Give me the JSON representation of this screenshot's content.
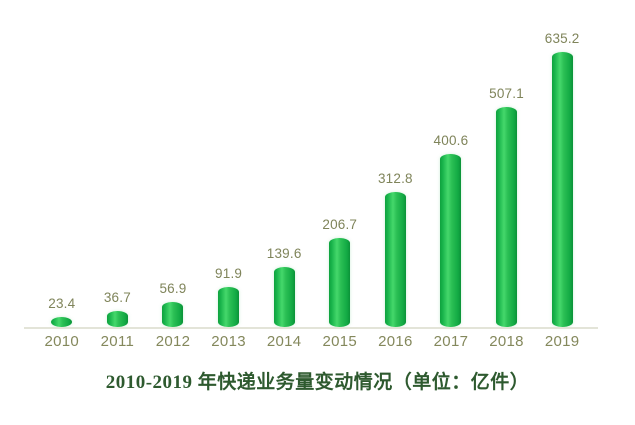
{
  "chart_data": {
    "type": "bar",
    "categories": [
      "2010",
      "2011",
      "2012",
      "2013",
      "2014",
      "2015",
      "2016",
      "2017",
      "2018",
      "2019"
    ],
    "values": [
      23.4,
      36.7,
      56.9,
      91.9,
      139.6,
      206.7,
      312.8,
      400.6,
      507.1,
      635.2
    ],
    "data_labels": [
      "23.4",
      "36.7",
      "56.9",
      "91.9",
      "139.6",
      "206.7",
      "312.8",
      "400.6",
      "507.1",
      "635.2"
    ],
    "title": "2010-2019 年快递业务量变动情况（单位：亿件）",
    "xlabel": "",
    "ylabel": "",
    "unit": "亿件",
    "ylim": [
      0,
      660
    ],
    "grid": false,
    "legend_position": "none",
    "label_position": "above-bar",
    "bar_style": "cylinder"
  },
  "colors": {
    "bar_main": "#1db24a",
    "bar_edge_dark": "#0b9238",
    "bar_highlight": "#45d86b",
    "value_label_text": "#7f845a",
    "tick_label_text": "#84885c",
    "axis_line": "#e3e4d8",
    "title_text": "#2e5a2f",
    "background": "#ffffff"
  }
}
